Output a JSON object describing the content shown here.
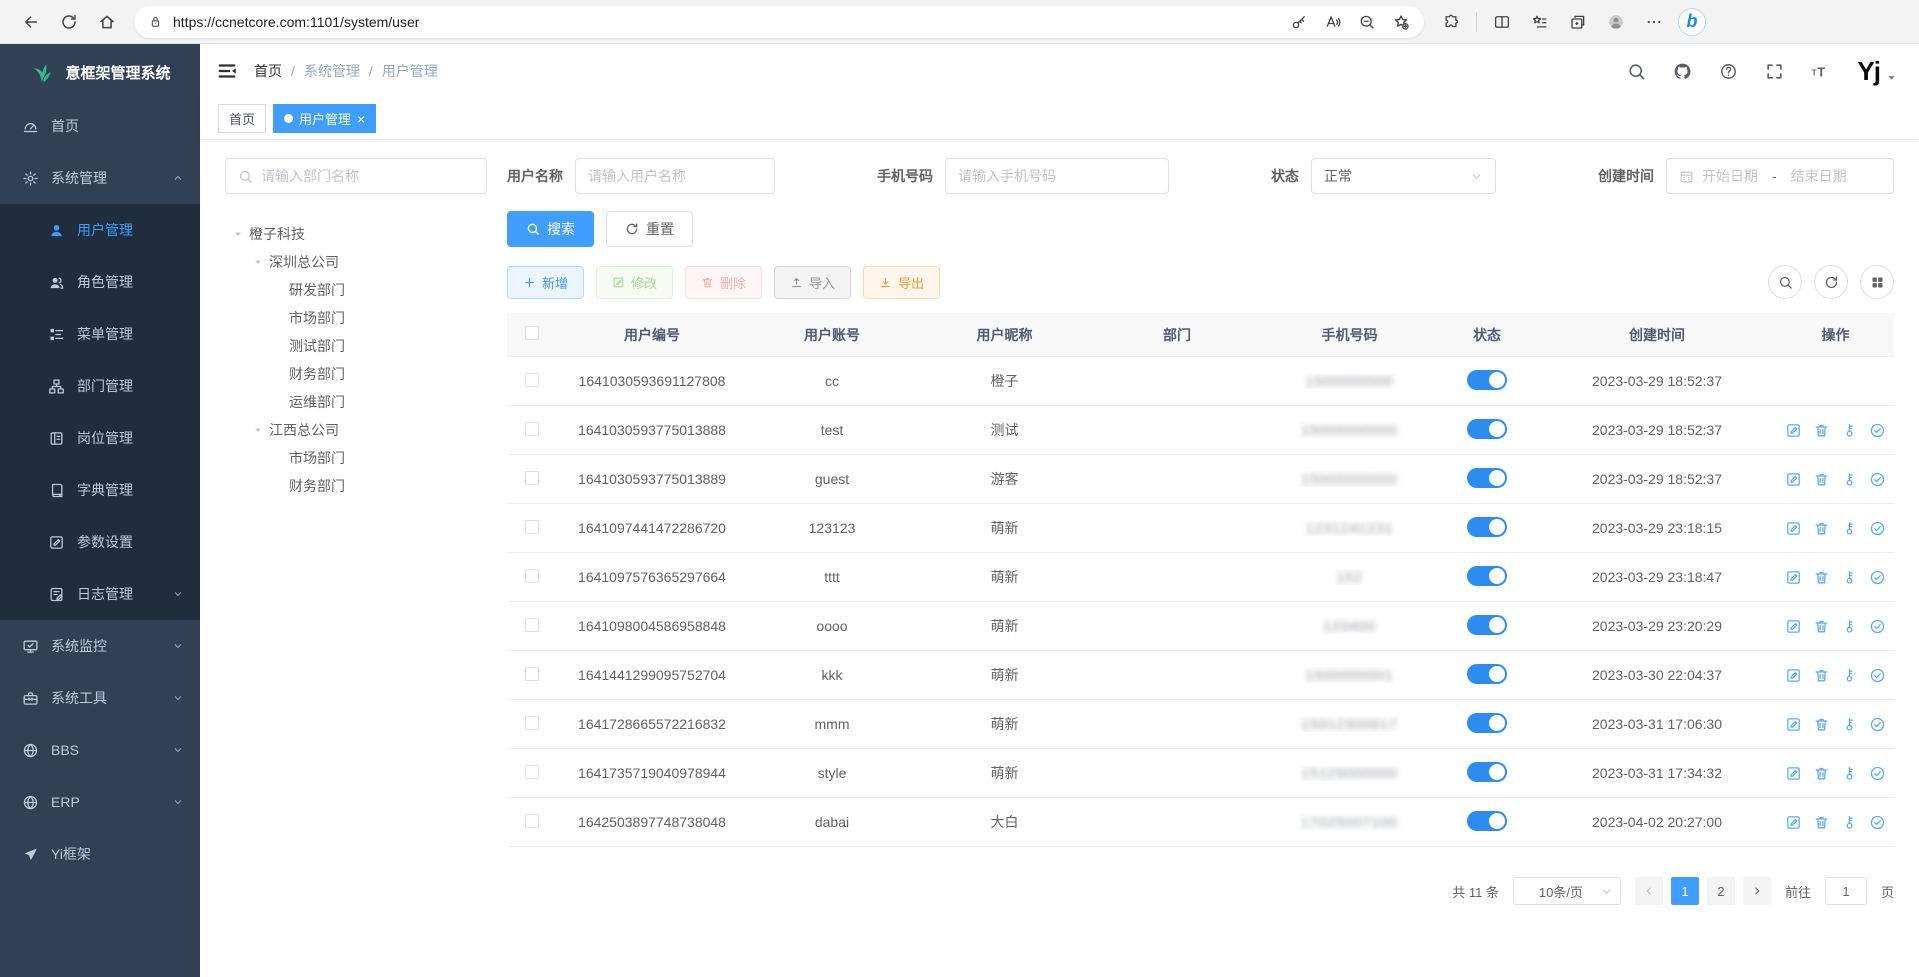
{
  "browser": {
    "url": "https://ccnetcore.com:1101/system/user"
  },
  "sidebar": {
    "logo_title": "意框架管理系统",
    "items": [
      {
        "label": "首页",
        "icon": "dashboard",
        "sub": false,
        "active": false,
        "arrow": null
      },
      {
        "label": "系统管理",
        "icon": "gear",
        "sub": false,
        "active": false,
        "arrow": "up"
      },
      {
        "label": "用户管理",
        "icon": "user",
        "sub": true,
        "active": true,
        "arrow": null
      },
      {
        "label": "角色管理",
        "icon": "users",
        "sub": true,
        "active": false,
        "arrow": null
      },
      {
        "label": "菜单管理",
        "icon": "menutree",
        "sub": true,
        "active": false,
        "arrow": null
      },
      {
        "label": "部门管理",
        "icon": "depttree",
        "sub": true,
        "active": false,
        "arrow": null
      },
      {
        "label": "岗位管理",
        "icon": "post",
        "sub": true,
        "active": false,
        "arrow": null
      },
      {
        "label": "字典管理",
        "icon": "dict",
        "sub": true,
        "active": false,
        "arrow": null
      },
      {
        "label": "参数设置",
        "icon": "editsq",
        "sub": true,
        "active": false,
        "arrow": null
      },
      {
        "label": "日志管理",
        "icon": "logdoc",
        "sub": true,
        "active": false,
        "arrow": "down"
      },
      {
        "label": "系统监控",
        "icon": "monitor",
        "sub": false,
        "active": false,
        "arrow": "down"
      },
      {
        "label": "系统工具",
        "icon": "toolbox",
        "sub": false,
        "active": false,
        "arrow": "down"
      },
      {
        "label": "BBS",
        "icon": "globe",
        "sub": false,
        "active": false,
        "arrow": "down"
      },
      {
        "label": "ERP",
        "icon": "globe",
        "sub": false,
        "active": false,
        "arrow": "down"
      },
      {
        "label": "Yi框架",
        "icon": "send",
        "sub": false,
        "active": false,
        "arrow": null
      }
    ]
  },
  "header": {
    "breadcrumb": [
      "首页",
      "系统管理",
      "用户管理"
    ],
    "breadcrumb_sep": "/",
    "logo_text": "Yj"
  },
  "tabs": {
    "home": "首页",
    "active_label": "用户管理",
    "close": "×"
  },
  "dept_filter": {
    "placeholder": "请输入部门名称"
  },
  "tree": {
    "items": [
      {
        "label": "橙子科技",
        "depth": 0,
        "caret": true
      },
      {
        "label": "深圳总公司",
        "depth": 1,
        "caret": true
      },
      {
        "label": "研发部门",
        "depth": 2,
        "caret": false
      },
      {
        "label": "市场部门",
        "depth": 2,
        "caret": false
      },
      {
        "label": "测试部门",
        "depth": 2,
        "caret": false
      },
      {
        "label": "财务部门",
        "depth": 2,
        "caret": false
      },
      {
        "label": "运维部门",
        "depth": 2,
        "caret": false
      },
      {
        "label": "江西总公司",
        "depth": 1,
        "caret": true
      },
      {
        "label": "市场部门",
        "depth": 2,
        "caret": false
      },
      {
        "label": "财务部门",
        "depth": 2,
        "caret": false
      }
    ]
  },
  "filters": {
    "username": {
      "label": "用户名称",
      "placeholder": "请输入用户名称"
    },
    "phone": {
      "label": "手机号码",
      "placeholder": "请输入手机号码"
    },
    "status": {
      "label": "状态",
      "value": "正常"
    },
    "created": {
      "label": "创建时间",
      "start": "开始日期",
      "dash": "-",
      "end": "结束日期"
    }
  },
  "toolbar": {
    "search": "搜索",
    "reset": "重置",
    "add": "新增",
    "modify": "修改",
    "remove": "删除",
    "import": "导入",
    "export": "导出"
  },
  "table": {
    "columns": [
      "用户编号",
      "用户账号",
      "用户昵称",
      "部门",
      "手机号码",
      "状态",
      "创建时间",
      "操作"
    ],
    "rows": [
      {
        "id": "1641030593691127808",
        "account": "cc",
        "nickname": "橙子",
        "dept": "",
        "phone": "1500000000",
        "status": true,
        "created": "2023-03-29 18:52:37",
        "actions": false
      },
      {
        "id": "1641030593775013888",
        "account": "test",
        "nickname": "测试",
        "dept": "",
        "phone": "15000000000",
        "status": true,
        "created": "2023-03-29 18:52:37",
        "actions": true
      },
      {
        "id": "1641030593775013889",
        "account": "guest",
        "nickname": "游客",
        "dept": "",
        "phone": "15000000000",
        "status": true,
        "created": "2023-03-29 18:52:37",
        "actions": true
      },
      {
        "id": "1641097441472286720",
        "account": "123123",
        "nickname": "萌新",
        "dept": "",
        "phone": "1231241231",
        "status": true,
        "created": "2023-03-29 23:18:15",
        "actions": true
      },
      {
        "id": "1641097576365297664",
        "account": "tttt",
        "nickname": "萌新",
        "dept": "",
        "phone": "152",
        "status": true,
        "created": "2023-03-29 23:18:47",
        "actions": true
      },
      {
        "id": "1641098004586958848",
        "account": "oooo",
        "nickname": "萌新",
        "dept": "",
        "phone": "120400",
        "status": true,
        "created": "2023-03-29 23:20:29",
        "actions": true
      },
      {
        "id": "1641441299095752704",
        "account": "kkk",
        "nickname": "萌新",
        "dept": "",
        "phone": "1500000001",
        "status": true,
        "created": "2023-03-30 22:04:37",
        "actions": true
      },
      {
        "id": "1641728665572216832",
        "account": "mmm",
        "nickname": "萌新",
        "dept": "",
        "phone": "15012300617",
        "status": true,
        "created": "2023-03-31 17:06:30",
        "actions": true
      },
      {
        "id": "1641735719040978944",
        "account": "style",
        "nickname": "萌新",
        "dept": "",
        "phone": "15129000000",
        "status": true,
        "created": "2023-03-31 17:34:32",
        "actions": true
      },
      {
        "id": "1642503897748738048",
        "account": "dabai",
        "nickname": "大白",
        "dept": "",
        "phone": "17025007100",
        "status": true,
        "created": "2023-04-02 20:27:00",
        "actions": true
      }
    ]
  },
  "pagination": {
    "total_text": "共 11 条",
    "page_size": "10条/页",
    "pages": [
      "1",
      "2"
    ],
    "current": "1",
    "goto_label": "前往",
    "goto_value": "1",
    "unit": "页"
  },
  "accent_colors": {
    "primary": "#409eff",
    "toggle_on": "#2d8cf0",
    "sidebar_bg": "#304156",
    "submenu_bg": "#1f2d3d"
  }
}
